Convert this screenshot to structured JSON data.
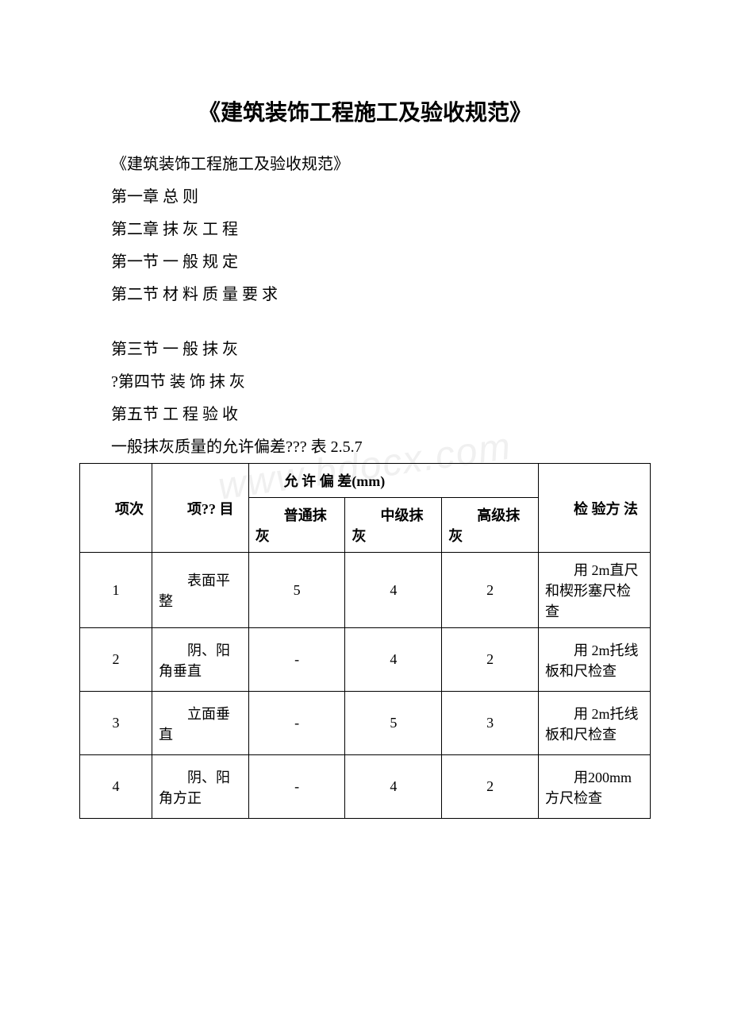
{
  "watermark": "www.bdocx.com",
  "title": "《建筑装饰工程施工及验收规范》",
  "subtitle": "《建筑装饰工程施工及验收规范》",
  "chapters": [
    "第一章 总 则",
    "第二章 抹 灰 工 程",
    "第一节 一 般 规 定",
    "第二节 材 料 质 量 要 求"
  ],
  "chapters2": [
    "第三节 一 般 抹 灰",
    "?第四节 装 饰 抹 灰",
    "第五节 工 程 验 收"
  ],
  "table_caption": "一般抹灰质量的允许偏差??? 表 2.5.7",
  "table": {
    "header": {
      "col_num": "项次",
      "col_item": "项?? 目",
      "col_deviation": "允 许 偏 差(mm)",
      "col_method": "检 验方 法",
      "sub_normal": "普通抹灰",
      "sub_mid": "中级抹灰",
      "sub_high": "高级抹灰"
    },
    "rows": [
      {
        "num": "1",
        "item": "表面平整",
        "normal": "5",
        "mid": "4",
        "high": "2",
        "method": "用 2m直尺和楔形塞尺检查"
      },
      {
        "num": "2",
        "item": "阴、阳角垂直",
        "normal": "-",
        "mid": "4",
        "high": "2",
        "method": "用 2m托线板和尺检查"
      },
      {
        "num": "3",
        "item": "立面垂直",
        "normal": "-",
        "mid": "5",
        "high": "3",
        "method": "用 2m托线板和尺检查"
      },
      {
        "num": "4",
        "item": "阴、阳角方正",
        "normal": "-",
        "mid": "4",
        "high": "2",
        "method": "用200mm 方尺检查"
      }
    ]
  },
  "colors": {
    "background": "#ffffff",
    "text": "#000000",
    "border": "#000000",
    "watermark": "#f0f0f0"
  },
  "fonts": {
    "title_size": 28,
    "body_size": 20,
    "table_size": 18
  }
}
